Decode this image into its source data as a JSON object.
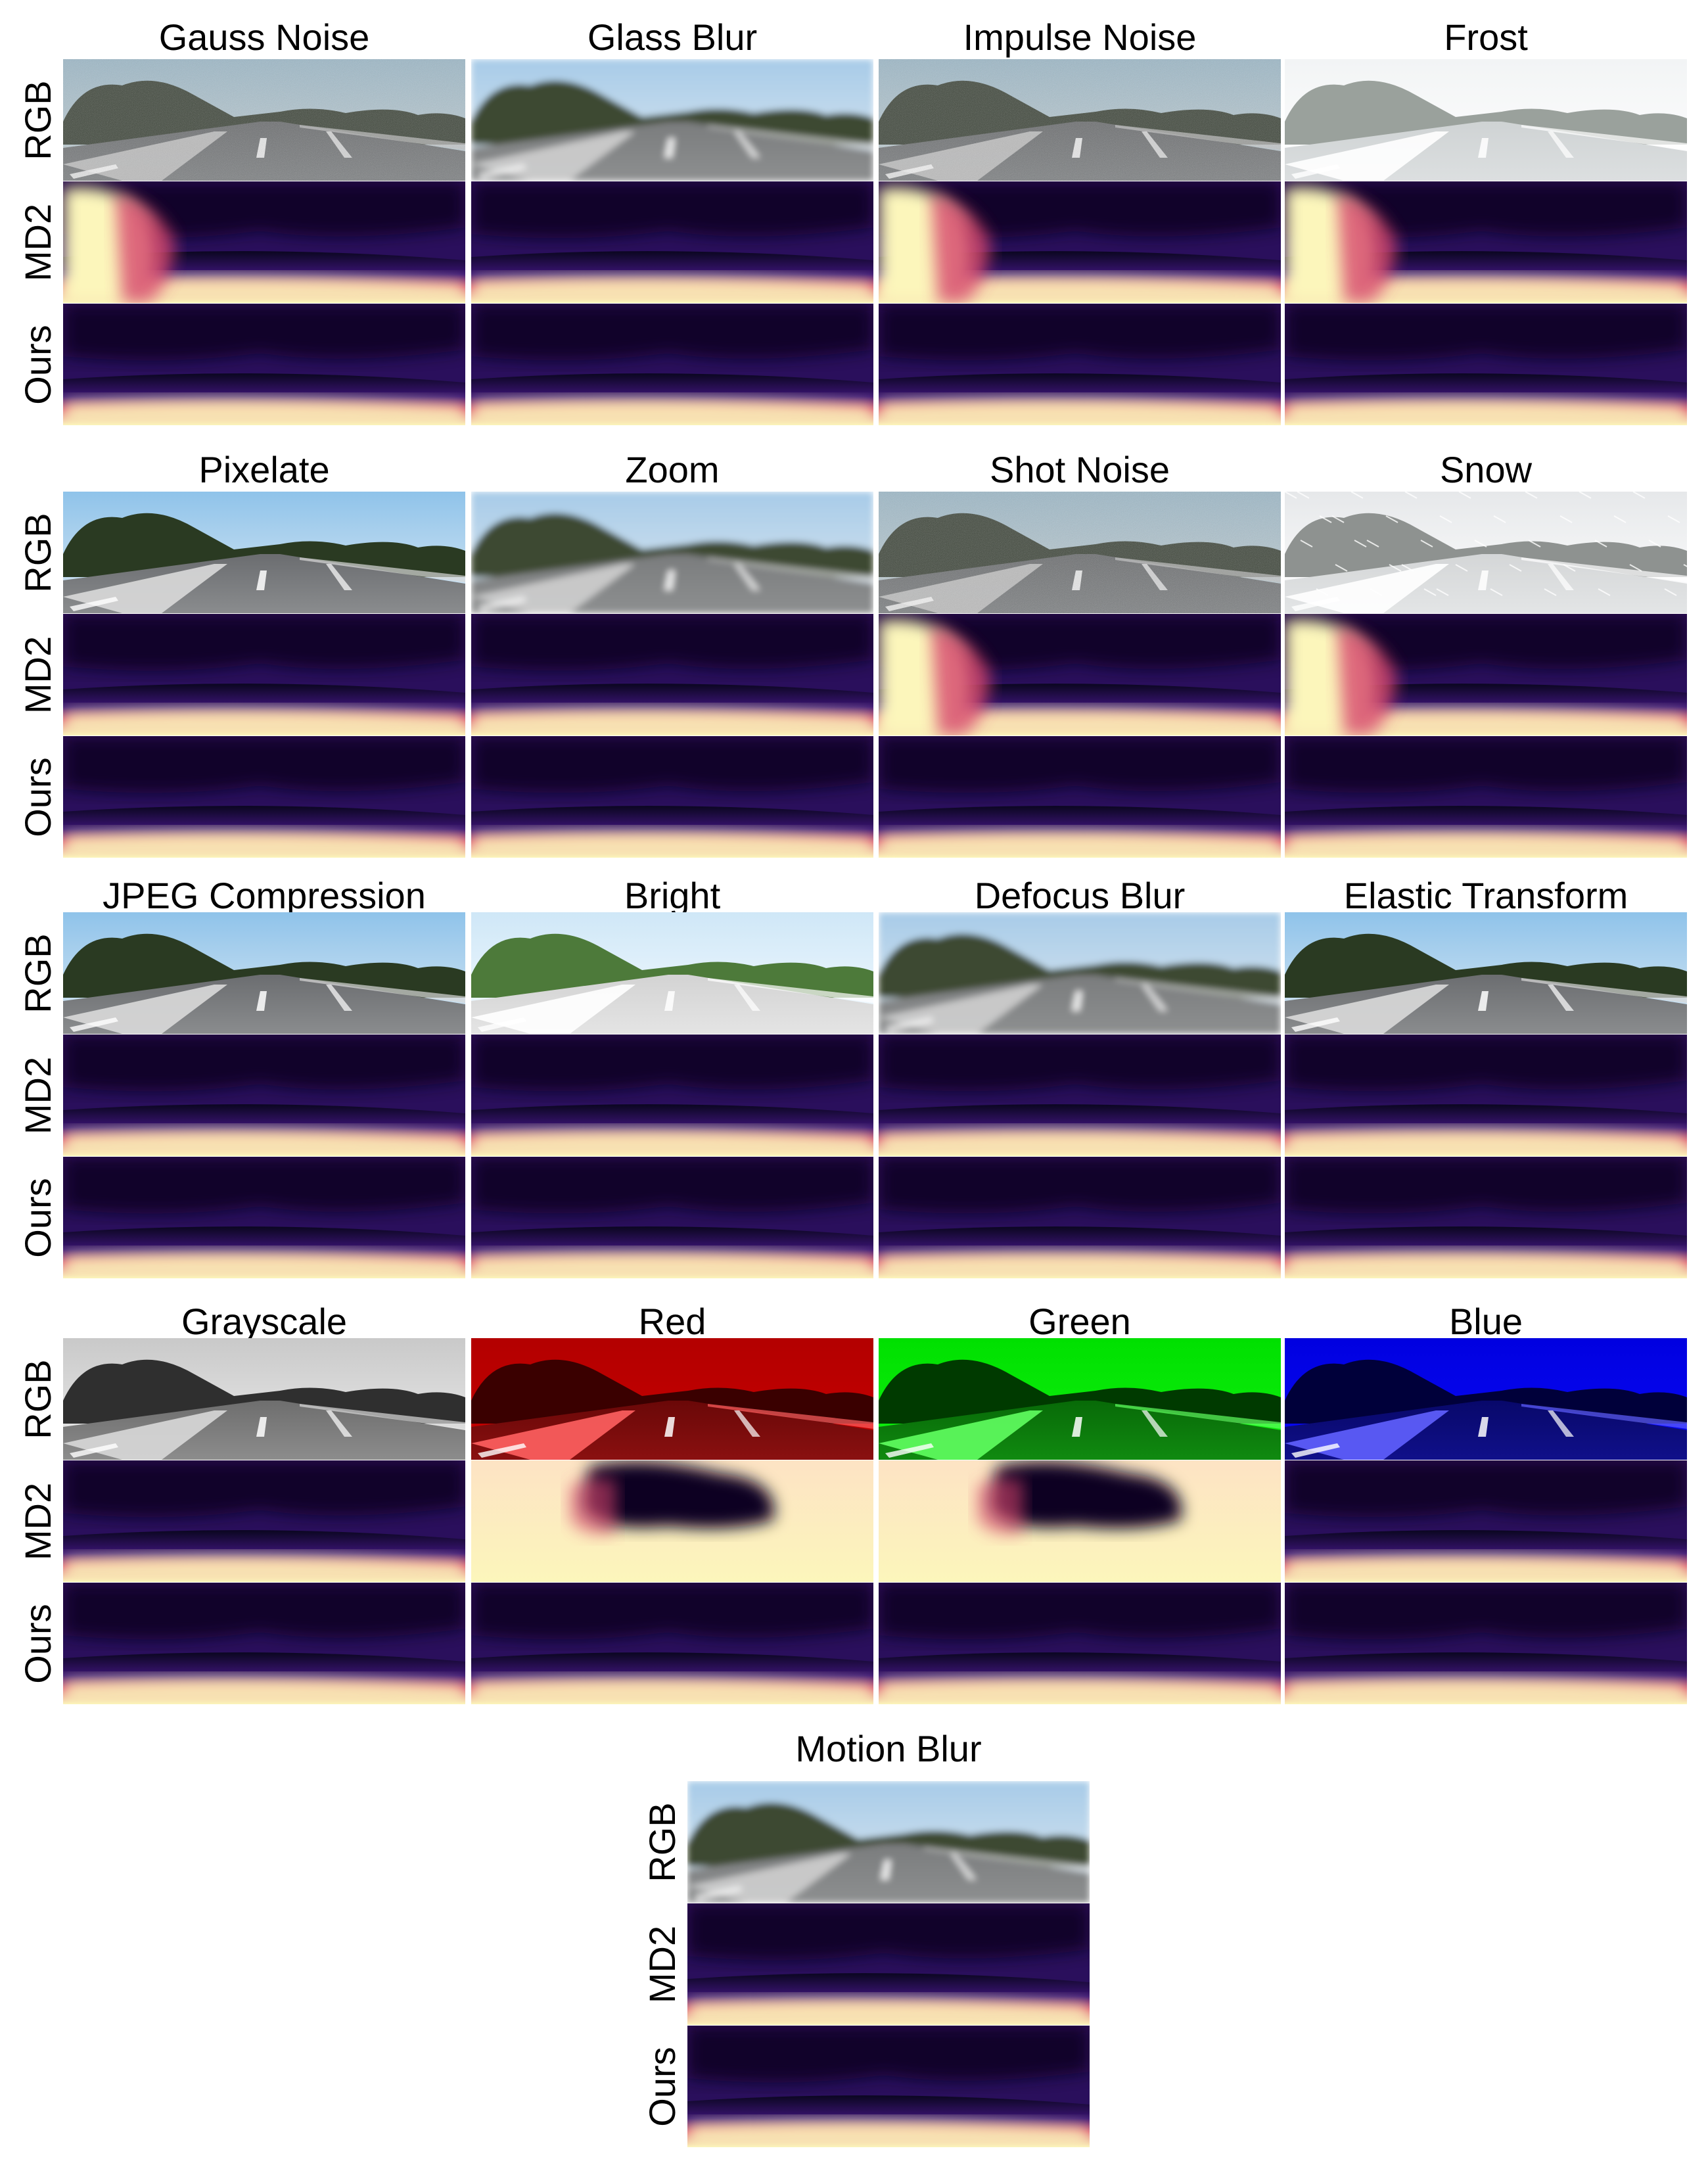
{
  "row_labels": {
    "rgb": "RGB",
    "md2": "MD2",
    "ours": "Ours"
  },
  "corruptions": [
    {
      "name": "Gauss Noise",
      "rgb": "noisy",
      "md2": "near-left-blob"
    },
    {
      "name": "Glass Blur",
      "rgb": "blur",
      "md2": "ground-band"
    },
    {
      "name": "Impulse Noise",
      "rgb": "noisy",
      "md2": "near-left-blob"
    },
    {
      "name": "Frost",
      "rgb": "frost",
      "md2": "near-left-blob"
    },
    {
      "name": "Pixelate",
      "rgb": "normal",
      "md2": "ground-band"
    },
    {
      "name": "Zoom",
      "rgb": "blur",
      "md2": "ground-band"
    },
    {
      "name": "Shot Noise",
      "rgb": "noisy",
      "md2": "near-left-blob"
    },
    {
      "name": "Snow",
      "rgb": "snow",
      "md2": "near-left-blob"
    },
    {
      "name": "JPEG Compression",
      "rgb": "normal",
      "md2": "ground-band"
    },
    {
      "name": "Bright",
      "rgb": "bright",
      "md2": "ground-band"
    },
    {
      "name": "Defocus Blur",
      "rgb": "blur",
      "md2": "ground-band"
    },
    {
      "name": "Elastic Transform",
      "rgb": "normal",
      "md2": "ground-band"
    },
    {
      "name": "Grayscale",
      "rgb": "gray",
      "md2": "ground-band"
    },
    {
      "name": "Red",
      "rgb": "red",
      "md2": "washed-out"
    },
    {
      "name": "Green",
      "rgb": "green",
      "md2": "washed-out"
    },
    {
      "name": "Blue",
      "rgb": "blue",
      "md2": "ground-band"
    },
    {
      "name": "Motion Blur",
      "rgb": "blur",
      "md2": "ground-band"
    }
  ],
  "colors": {
    "magma_dark": "#0a0620",
    "magma_purple": "#3b1474",
    "magma_pink": "#d6456c",
    "magma_yellow": "#fcf6bb"
  }
}
